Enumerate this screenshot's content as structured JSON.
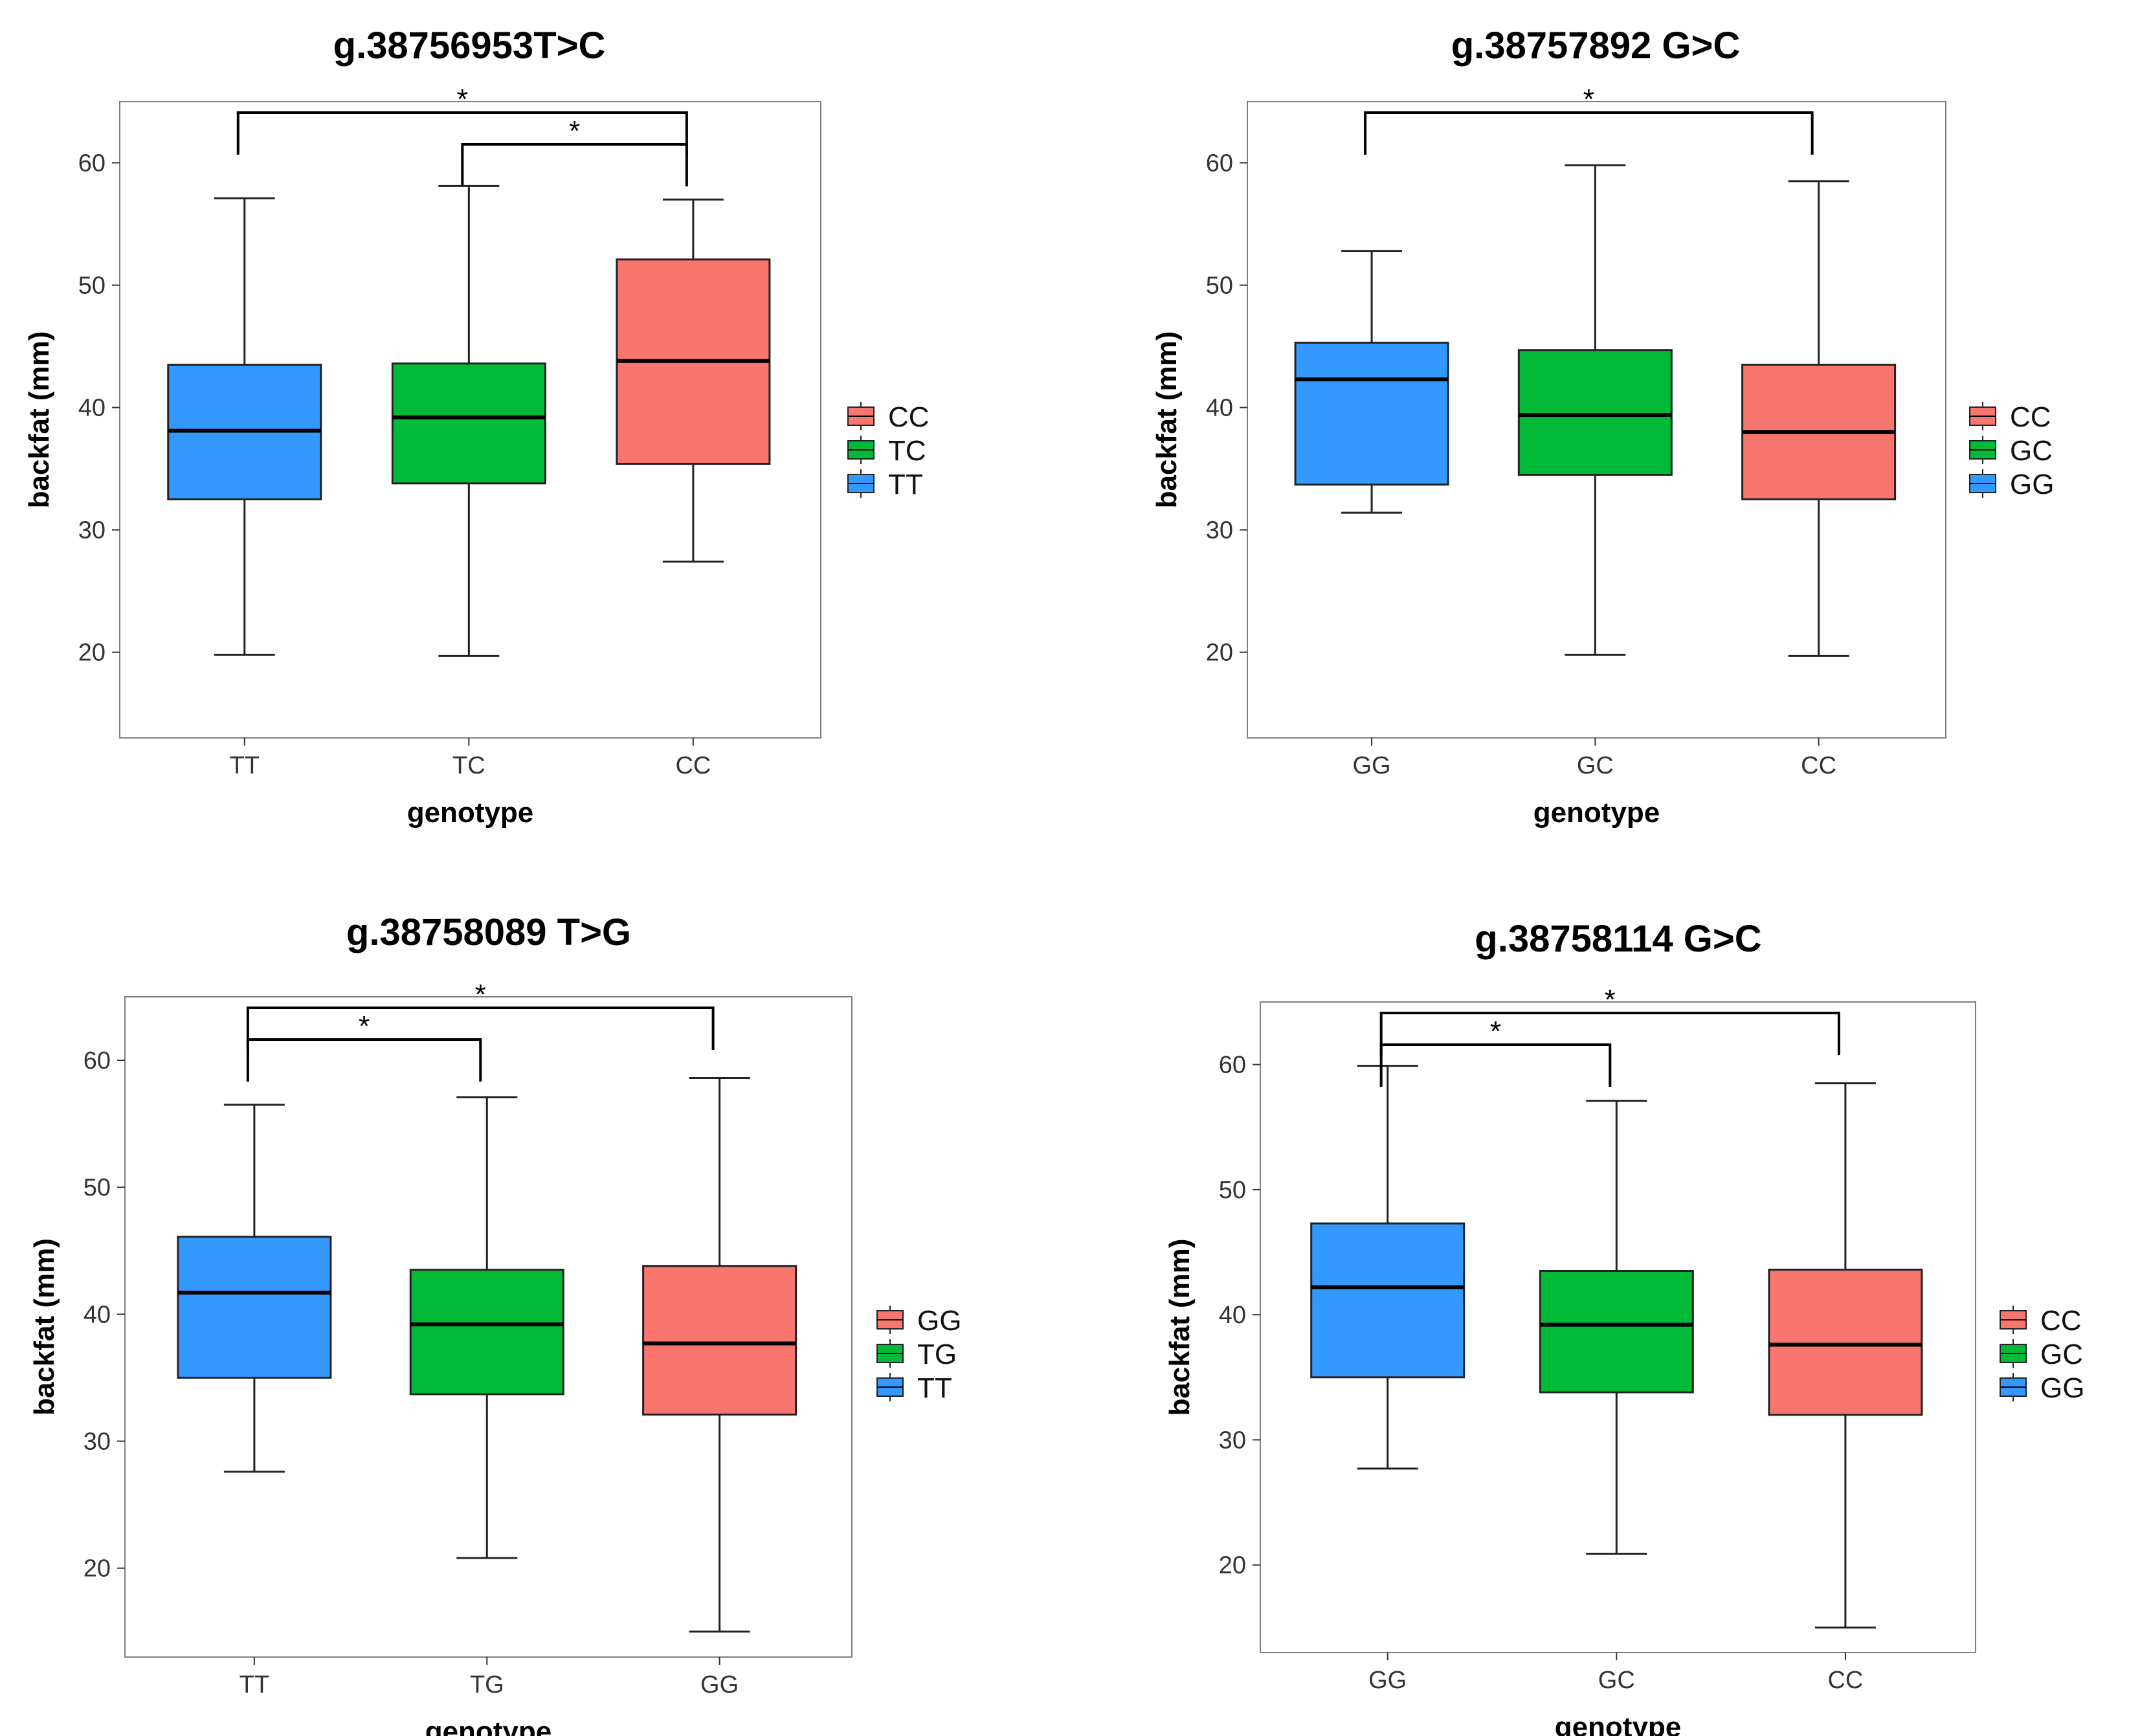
{
  "chart_data": [
    {
      "type": "boxplot",
      "title": "g.38756953T>C",
      "xlabel": "genotype",
      "ylabel": "backfat (mm)",
      "ylim": [
        13,
        65
      ],
      "yticks": [
        20,
        30,
        40,
        50,
        60
      ],
      "categories": [
        "TT",
        "TC",
        "CC"
      ],
      "boxes": [
        {
          "name": "TT",
          "color": "#3399FF",
          "min": 19.8,
          "q1": 32.5,
          "median": 38.1,
          "q3": 43.5,
          "max": 57.1
        },
        {
          "name": "TC",
          "color": "#00BA38",
          "min": 19.7,
          "q1": 33.8,
          "median": 39.2,
          "q3": 43.6,
          "max": 58.1
        },
        {
          "name": "CC",
          "color": "#F8766D",
          "min": 27.4,
          "q1": 35.4,
          "median": 43.8,
          "q3": 52.1,
          "max": 57.0
        }
      ],
      "legend": {
        "position": "right",
        "entries": [
          "CC",
          "TC",
          "TT"
        ]
      },
      "significance": [
        {
          "from": "TT",
          "to": "CC",
          "label": "*"
        },
        {
          "from": "TC",
          "to": "CC",
          "label": "*"
        }
      ]
    },
    {
      "type": "boxplot",
      "title": "g.38757892 G>C",
      "xlabel": "genotype",
      "ylabel": "backfat (mm)",
      "ylim": [
        13,
        65
      ],
      "yticks": [
        20,
        30,
        40,
        50,
        60
      ],
      "categories": [
        "GG",
        "GC",
        "CC"
      ],
      "boxes": [
        {
          "name": "GG",
          "color": "#3399FF",
          "min": 31.4,
          "q1": 33.7,
          "median": 42.3,
          "q3": 45.3,
          "max": 52.8
        },
        {
          "name": "GC",
          "color": "#00BA38",
          "min": 19.8,
          "q1": 34.5,
          "median": 39.4,
          "q3": 44.7,
          "max": 59.8
        },
        {
          "name": "CC",
          "color": "#F8766D",
          "min": 19.7,
          "q1": 32.5,
          "median": 38.0,
          "q3": 43.5,
          "max": 58.5
        }
      ],
      "legend": {
        "position": "right",
        "entries": [
          "CC",
          "GC",
          "GG"
        ]
      },
      "significance": [
        {
          "from": "GG",
          "to": "CC",
          "label": "*"
        }
      ]
    },
    {
      "type": "boxplot",
      "title": "g.38758089 T>G",
      "xlabel": "genotype",
      "ylabel": "backfat (mm)",
      "ylim": [
        13,
        65
      ],
      "yticks": [
        20,
        30,
        40,
        50,
        60
      ],
      "categories": [
        "TT",
        "TG",
        "GG"
      ],
      "boxes": [
        {
          "name": "TT",
          "color": "#3399FF",
          "min": 27.6,
          "q1": 35.0,
          "median": 41.7,
          "q3": 46.1,
          "max": 56.5
        },
        {
          "name": "TG",
          "color": "#00BA38",
          "min": 20.8,
          "q1": 33.7,
          "median": 39.2,
          "q3": 43.5,
          "max": 57.1
        },
        {
          "name": "GG",
          "color": "#F8766D",
          "min": 15.0,
          "q1": 32.1,
          "median": 37.7,
          "q3": 43.8,
          "max": 58.6
        }
      ],
      "legend": {
        "position": "right",
        "entries": [
          "GG",
          "TG",
          "TT"
        ]
      },
      "significance": [
        {
          "from": "TT",
          "to": "TG",
          "label": "*"
        },
        {
          "from": "TT",
          "to": "GG",
          "label": "*"
        }
      ]
    },
    {
      "type": "boxplot",
      "title": "g.38758114 G>C",
      "xlabel": "genotype",
      "ylabel": "backfat (mm)",
      "ylim": [
        13,
        65
      ],
      "yticks": [
        20,
        30,
        40,
        50,
        60
      ],
      "categories": [
        "GG",
        "GC",
        "CC"
      ],
      "boxes": [
        {
          "name": "GG",
          "color": "#3399FF",
          "min": 27.7,
          "q1": 35.0,
          "median": 42.2,
          "q3": 47.3,
          "max": 59.9
        },
        {
          "name": "GC",
          "color": "#00BA38",
          "min": 20.9,
          "q1": 33.8,
          "median": 39.2,
          "q3": 43.5,
          "max": 57.1
        },
        {
          "name": "CC",
          "color": "#F8766D",
          "min": 15.0,
          "q1": 32.0,
          "median": 37.6,
          "q3": 43.6,
          "max": 58.5
        }
      ],
      "legend": {
        "position": "right",
        "entries": [
          "CC",
          "GC",
          "GG"
        ]
      },
      "significance": [
        {
          "from": "GG",
          "to": "GC",
          "label": "*"
        },
        {
          "from": "GG",
          "to": "CC",
          "label": "*"
        }
      ]
    }
  ]
}
